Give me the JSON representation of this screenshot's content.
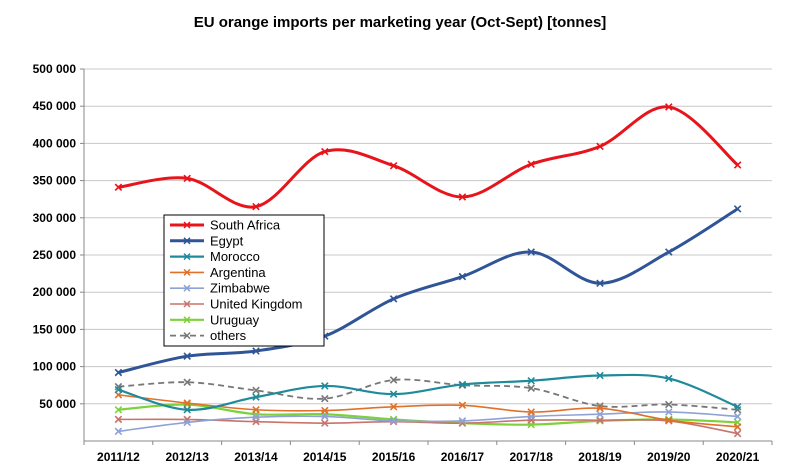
{
  "chart_data": {
    "type": "line",
    "title": "EU orange imports per marketing year (Oct-Sept) [tonnes]",
    "xlabel": "",
    "ylabel": "",
    "ylim": [
      0,
      500000
    ],
    "yticks": [
      {
        "value": 50000,
        "label": "50 000"
      },
      {
        "value": 100000,
        "label": "100 000"
      },
      {
        "value": 150000,
        "label": "150 000"
      },
      {
        "value": 200000,
        "label": "200 000"
      },
      {
        "value": 250000,
        "label": "250 000"
      },
      {
        "value": 300000,
        "label": "300 000"
      },
      {
        "value": 350000,
        "label": "350 000"
      },
      {
        "value": 400000,
        "label": "400 000"
      },
      {
        "value": 450000,
        "label": "450 000"
      },
      {
        "value": 500000,
        "label": "500 000"
      }
    ],
    "categories": [
      "2011/12",
      "2012/13",
      "2013/14",
      "2014/15",
      "2015/16",
      "2016/17",
      "2017/18",
      "2018/19",
      "2019/20",
      "2020/21"
    ],
    "grid": true,
    "legend_position": "left-middle",
    "series": [
      {
        "name": "South Africa",
        "color": "#e8141b",
        "width": 3,
        "dash": "",
        "values": [
          341000,
          353000,
          315000,
          389000,
          370000,
          328000,
          372000,
          396000,
          449000,
          371000
        ]
      },
      {
        "name": "Egypt",
        "color": "#2f5597",
        "width": 3,
        "dash": "",
        "values": [
          92000,
          114000,
          121000,
          141000,
          191000,
          221000,
          254000,
          212000,
          254000,
          312000
        ]
      },
      {
        "name": "Morocco",
        "color": "#1f8b9a",
        "width": 2.2,
        "dash": "",
        "values": [
          69000,
          42000,
          59000,
          74000,
          63000,
          76000,
          81000,
          88000,
          84000,
          46000
        ]
      },
      {
        "name": "Argentina",
        "color": "#e0702a",
        "width": 1.6,
        "dash": "",
        "values": [
          62000,
          51000,
          42000,
          41000,
          46000,
          48000,
          39000,
          44000,
          28000,
          19000
        ]
      },
      {
        "name": "Zimbabwe",
        "color": "#8ea2d6",
        "width": 1.6,
        "dash": "",
        "values": [
          13000,
          25000,
          32000,
          33000,
          27000,
          27000,
          33000,
          36000,
          39000,
          33000
        ]
      },
      {
        "name": "United Kingdom",
        "color": "#c7746c",
        "width": 1.6,
        "dash": "",
        "values": [
          29000,
          29000,
          26000,
          24000,
          26000,
          24000,
          28000,
          28000,
          27000,
          10000
        ]
      },
      {
        "name": "Uruguay",
        "color": "#7dd13a",
        "width": 2.2,
        "dash": "",
        "values": [
          42000,
          49000,
          36000,
          36000,
          29000,
          24000,
          22000,
          27000,
          29000,
          25000
        ]
      },
      {
        "name": "others",
        "color": "#777777",
        "width": 1.8,
        "dash": "6 4",
        "values": [
          73000,
          79000,
          68000,
          57000,
          82000,
          75000,
          71000,
          47000,
          49000,
          42000
        ]
      }
    ]
  }
}
